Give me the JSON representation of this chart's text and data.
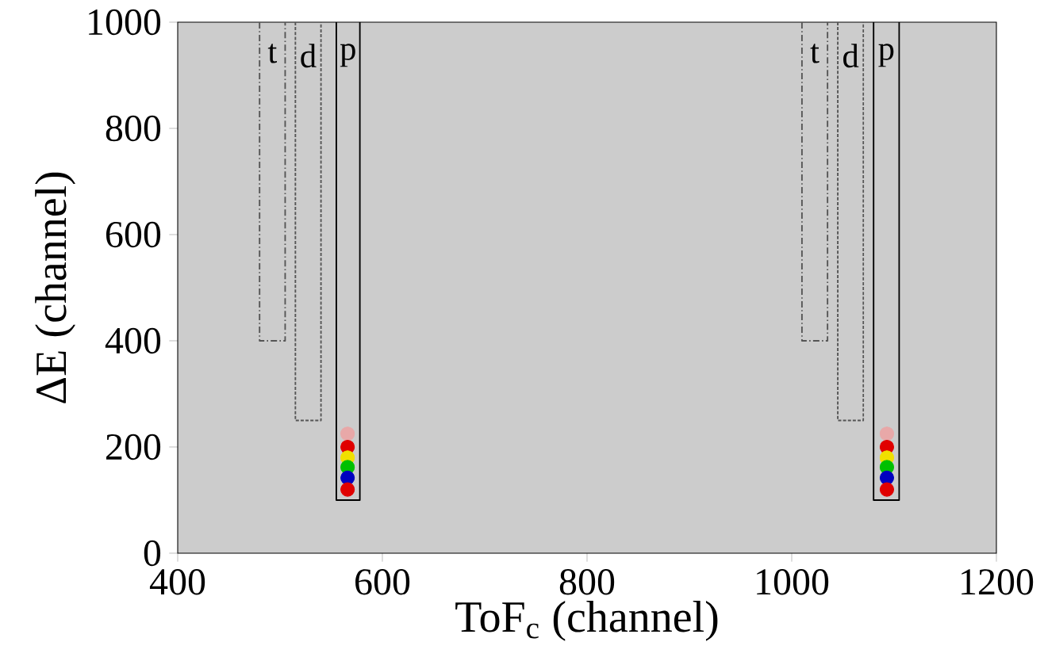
{
  "chart_data": {
    "type": "scatter",
    "xlabel": "ToF$_{c}$ (channel)",
    "ylabel": "ΔE (channel)",
    "xlim": [
      400,
      1200
    ],
    "ylim": [
      0,
      1000
    ],
    "xticks": [
      400,
      600,
      800,
      1000,
      1200
    ],
    "yticks": [
      0,
      200,
      400,
      600,
      800,
      1000
    ],
    "series": [
      {
        "type": "line",
        "name": "t",
        "color": "#555555",
        "line_style": "dashed",
        "marker": "none",
        "x": [
          480,
          480,
          505,
          505,
          758,
          1010,
          1010,
          1035,
          1035
        ],
        "values": [
          1000,
          400,
          400,
          1000,
          null,
          1000,
          400,
          400,
          1000
        ]
      },
      {
        "type": "line",
        "name": "d",
        "color": "#555555",
        "line_style": "dotted",
        "marker": "none",
        "x": [
          515,
          515,
          540,
          540,
          793,
          1045,
          1045,
          1070,
          1070
        ],
        "values": [
          1000,
          250,
          250,
          1000,
          null,
          1000,
          250,
          250,
          1000
        ]
      },
      {
        "type": "line",
        "name": "p",
        "color": "#000000",
        "line_style": "solid",
        "marker": "none",
        "x": [
          555,
          555,
          578,
          578,
          829,
          1080,
          1080,
          1105,
          1105
        ],
        "values": [
          1000,
          100,
          100,
          1000,
          null,
          1000,
          100,
          100,
          1000
        ]
      },
      {
        "x": [
          566,
          566,
          566,
          566,
          566,
          566,
          1093,
          1093,
          1093,
          1093,
          1093,
          1093
        ],
        "values": [
          225,
          200,
          180,
          162,
          142,
          120,
          225,
          200,
          180,
          162,
          142,
          120
        ],
        "colors": [
          "#e8a8a8",
          "#e00000",
          "#f0e000",
          "#00c000",
          "#0000c0",
          "#e00000",
          "#e8a8a8",
          "#e00000",
          "#f0e000",
          "#00c000",
          "#0000c0",
          "#e00000"
        ]
      }
    ]
  }
}
